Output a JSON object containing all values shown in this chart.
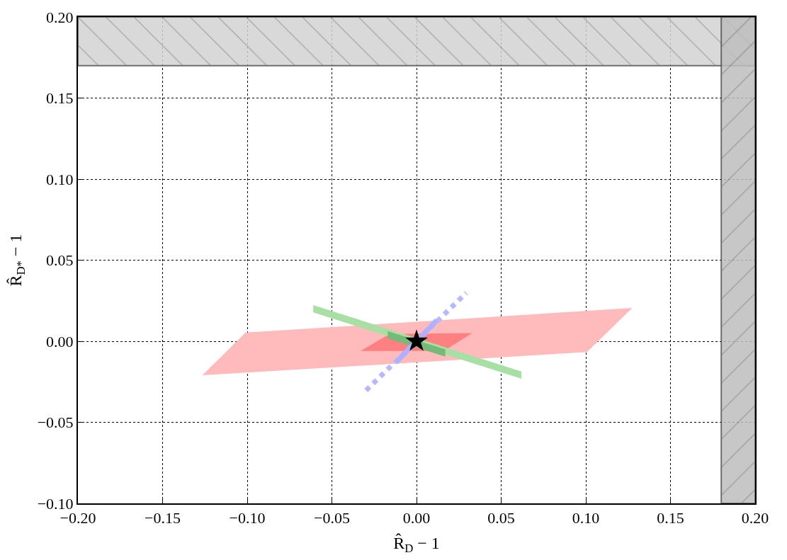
{
  "chart_data": {
    "type": "area",
    "xlabel": "R̂$_{D}$ − 1",
    "ylabel": "R̂$_{D*}$ − 1",
    "xlim": [
      -0.2,
      0.2
    ],
    "ylim": [
      -0.1,
      0.2
    ],
    "xticks": [
      {
        "value": -0.2,
        "label": "−0.20"
      },
      {
        "value": -0.15,
        "label": "−0.15"
      },
      {
        "value": -0.1,
        "label": "−0.10"
      },
      {
        "value": -0.05,
        "label": "−0.05"
      },
      {
        "value": 0,
        "label": "0.00"
      },
      {
        "value": 0.05,
        "label": "0.05"
      },
      {
        "value": 0.1,
        "label": "0.10"
      },
      {
        "value": 0.15,
        "label": "0.15"
      },
      {
        "value": 0.2,
        "label": "0.20"
      }
    ],
    "yticks": [
      {
        "value": -0.1,
        "label": "−0.10"
      },
      {
        "value": -0.05,
        "label": "−0.05"
      },
      {
        "value": 0,
        "label": "0.00"
      },
      {
        "value": 0.05,
        "label": "0.05"
      },
      {
        "value": 0.1,
        "label": "0.10"
      },
      {
        "value": 0.15,
        "label": "0.15"
      },
      {
        "value": 0.2,
        "label": "0.20"
      }
    ],
    "grid": true,
    "line_style": "dotted",
    "bands": [
      {
        "axis": "y",
        "from": 0.17,
        "to": 0.2,
        "color": "#d3d3d3"
      },
      {
        "axis": "x",
        "from": 0.18,
        "to": 0.2,
        "color": "#bebebe"
      }
    ],
    "series": [
      {
        "color": "#ffbbbb",
        "x": [
          -0.1265,
          -0.101,
          0.1274,
          0.1007,
          -0.1265
        ],
        "values": [
          -0.021,
          0.0053,
          0.0205,
          -0.0067,
          -0.021
        ]
      },
      {
        "color": "#ff8080",
        "x": [
          -0.033,
          -0.016,
          0.033,
          0.016,
          -0.033
        ],
        "values": [
          -0.006,
          0.0045,
          0.005,
          -0.006,
          -0.006
        ]
      },
      {
        "color": "#a8dfa4",
        "x": [
          -0.061,
          -0.061,
          0.062,
          0.062,
          -0.061
        ],
        "values": [
          0.0223,
          0.0178,
          -0.0231,
          -0.0187,
          0.0223
        ]
      },
      {
        "color": "#77b977",
        "x": [
          -0.017,
          -0.017,
          0.017,
          0.017,
          -0.017
        ],
        "values": [
          0.0062,
          0.0017,
          -0.0095,
          -0.005,
          0.0062
        ]
      },
      {
        "type": "line",
        "line_style": "dotted",
        "color": "#b8b8ff",
        "x": [
          -0.0298,
          0.0294
        ],
        "values": [
          -0.0303,
          0.0298
        ]
      },
      {
        "type": "line",
        "line_style": "solid",
        "color": "#b0b0ff",
        "x": [
          -0.012,
          0.012
        ],
        "values": [
          -0.013,
          0.013
        ]
      },
      {
        "type": "scatter",
        "marker": "star",
        "color": "#000000",
        "x": [
          0
        ],
        "values": [
          0
        ]
      }
    ]
  }
}
